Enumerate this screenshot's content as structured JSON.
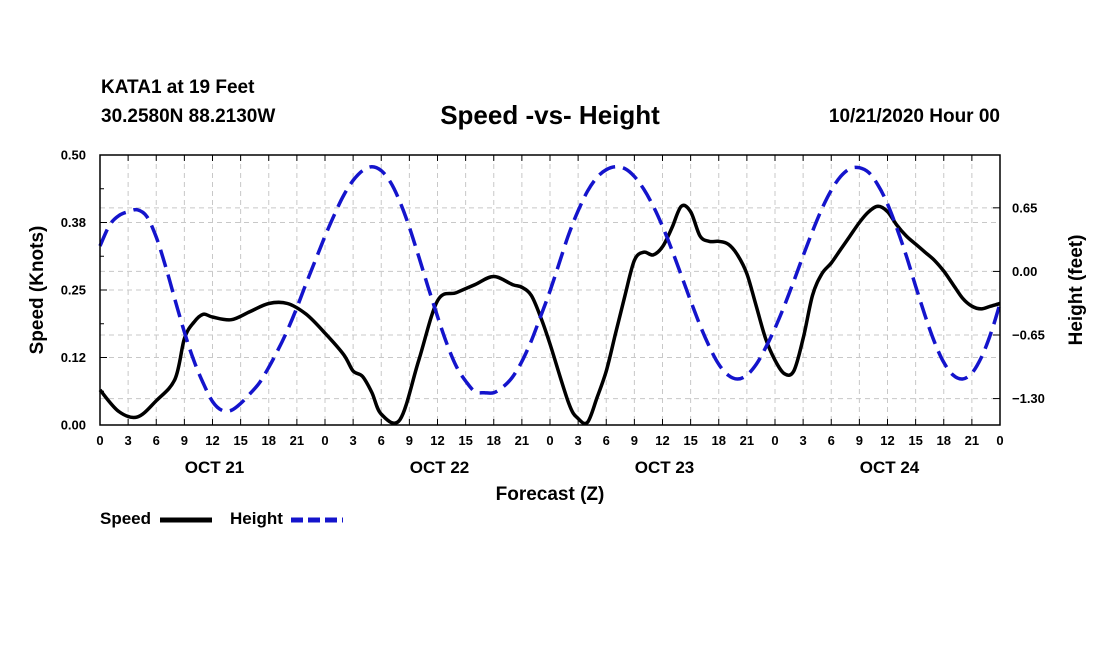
{
  "header": {
    "station": "KATA1 at 19 Feet",
    "coords": "30.2580N 88.2130W",
    "title": "Speed -vs- Height",
    "datetime": "10/21/2020 Hour 00"
  },
  "colors": {
    "speed": "#000000",
    "height": "#1414cc",
    "grid": "#c8c8c8"
  },
  "chart_data": {
    "type": "line",
    "title": "Speed -vs- Height",
    "xlabel": "Forecast (Z)",
    "ylabel": "Speed (Knots)",
    "y2label": "Height (feet)",
    "xlim": [
      0,
      96
    ],
    "ylim": [
      0,
      0.5
    ],
    "y2lim": [
      -1.57,
      1.19
    ],
    "x_ticks": [
      0,
      3,
      6,
      9,
      12,
      15,
      18,
      21,
      24,
      27,
      30,
      33,
      36,
      39,
      42,
      45,
      48,
      51,
      54,
      57,
      60,
      63,
      66,
      69,
      72,
      75,
      78,
      81,
      84,
      87,
      90,
      93,
      96
    ],
    "x_tick_labels": [
      "0",
      "3",
      "6",
      "9",
      "12",
      "15",
      "18",
      "21",
      "0",
      "3",
      "6",
      "9",
      "12",
      "15",
      "18",
      "21",
      "0",
      "3",
      "6",
      "9",
      "12",
      "15",
      "18",
      "21",
      "0",
      "3",
      "6",
      "9",
      "12",
      "15",
      "18",
      "21",
      "0"
    ],
    "day_labels": [
      {
        "x": 12,
        "label": "OCT 21"
      },
      {
        "x": 36,
        "label": "OCT 22"
      },
      {
        "x": 60,
        "label": "OCT 23"
      },
      {
        "x": 84,
        "label": "OCT 24"
      }
    ],
    "y_ticks": [
      0,
      0.125,
      0.25,
      0.375,
      0.5
    ],
    "y_tick_labels": [
      "0.00",
      "0.12",
      "0.25",
      "0.38",
      "0.50"
    ],
    "y2_ticks": [
      0.65,
      0,
      -0.65,
      -1.3
    ],
    "y2_tick_labels": [
      "0.65",
      "0.00",
      "−0.65",
      "−1.30"
    ],
    "grid": true,
    "legend_position": "bottom-left",
    "series": [
      {
        "name": "Speed",
        "axis": "left",
        "style": "solid",
        "x": [
          0,
          2,
          4,
          6,
          8,
          9,
          10,
          11,
          12,
          14,
          16,
          18,
          20,
          22,
          24,
          26,
          27,
          28,
          29,
          30,
          32,
          34,
          36,
          38,
          40,
          42,
          44,
          45,
          46,
          47,
          48,
          50,
          51,
          52,
          53,
          54,
          55,
          56,
          57,
          58,
          59,
          60,
          61,
          62,
          63,
          64,
          65,
          66,
          67,
          68,
          69,
          70,
          71,
          72,
          73,
          74,
          75,
          76,
          77,
          78,
          79,
          80,
          81,
          82,
          83,
          84,
          85,
          86,
          87,
          88,
          89,
          90,
          91,
          92,
          93,
          94,
          95,
          96
        ],
        "values": [
          0.065,
          0.025,
          0.015,
          0.045,
          0.085,
          0.16,
          0.19,
          0.205,
          0.2,
          0.195,
          0.21,
          0.225,
          0.225,
          0.205,
          0.17,
          0.13,
          0.1,
          0.09,
          0.06,
          0.02,
          0.01,
          0.12,
          0.23,
          0.245,
          0.26,
          0.275,
          0.26,
          0.255,
          0.24,
          0.2,
          0.15,
          0.04,
          0.012,
          0.005,
          0.05,
          0.1,
          0.17,
          0.24,
          0.305,
          0.32,
          0.315,
          0.33,
          0.365,
          0.405,
          0.395,
          0.35,
          0.34,
          0.34,
          0.335,
          0.315,
          0.28,
          0.22,
          0.16,
          0.12,
          0.095,
          0.1,
          0.16,
          0.24,
          0.28,
          0.3,
          0.325,
          0.35,
          0.375,
          0.395,
          0.405,
          0.395,
          0.37,
          0.35,
          0.335,
          0.32,
          0.305,
          0.285,
          0.26,
          0.235,
          0.22,
          0.215,
          0.22,
          0.225
        ]
      },
      {
        "name": "Height",
        "axis": "right",
        "style": "dashed",
        "x": [
          0,
          1,
          2,
          3,
          4,
          5,
          6,
          7,
          8,
          9,
          10,
          11,
          12,
          13,
          14,
          15,
          16,
          17,
          18,
          19,
          20,
          21,
          22,
          23,
          24,
          25,
          26,
          27,
          28,
          29,
          30,
          31,
          32,
          33,
          34,
          35,
          36,
          37,
          38,
          39,
          40,
          41,
          42,
          43,
          44,
          45,
          46,
          47,
          48,
          49,
          50,
          51,
          52,
          53,
          54,
          55,
          56,
          57,
          58,
          59,
          60,
          61,
          62,
          63,
          64,
          65,
          66,
          67,
          68,
          69,
          70,
          71,
          72,
          73,
          74,
          75,
          76,
          77,
          78,
          79,
          80,
          81,
          82,
          83,
          84,
          85,
          86,
          87,
          88,
          89,
          90,
          91,
          92,
          93,
          94,
          95,
          96
        ],
        "values": [
          0.26,
          0.47,
          0.57,
          0.61,
          0.63,
          0.56,
          0.35,
          0.05,
          -0.29,
          -0.62,
          -0.91,
          -1.14,
          -1.33,
          -1.42,
          -1.42,
          -1.35,
          -1.25,
          -1.14,
          -0.98,
          -0.8,
          -0.6,
          -0.37,
          -0.12,
          0.12,
          0.36,
          0.58,
          0.78,
          0.93,
          1.03,
          1.07,
          1.03,
          0.91,
          0.71,
          0.45,
          0.15,
          -0.16,
          -0.46,
          -0.74,
          -0.97,
          -1.12,
          -1.23,
          -1.24,
          -1.24,
          -1.18,
          -1.08,
          -0.92,
          -0.71,
          -0.46,
          -0.2,
          0.09,
          0.38,
          0.62,
          0.82,
          0.96,
          1.04,
          1.07,
          1.05,
          0.97,
          0.84,
          0.67,
          0.46,
          0.22,
          -0.04,
          -0.3,
          -0.55,
          -0.77,
          -0.95,
          -1.06,
          -1.1,
          -1.06,
          -0.95,
          -0.78,
          -0.58,
          -0.35,
          -0.1,
          0.16,
          0.41,
          0.64,
          0.83,
          0.97,
          1.05,
          1.06,
          1.01,
          0.88,
          0.69,
          0.44,
          0.16,
          -0.15,
          -0.45,
          -0.72,
          -0.93,
          -1.06,
          -1.1,
          -1.04,
          -0.88,
          -0.64,
          -0.33
        ]
      }
    ]
  }
}
